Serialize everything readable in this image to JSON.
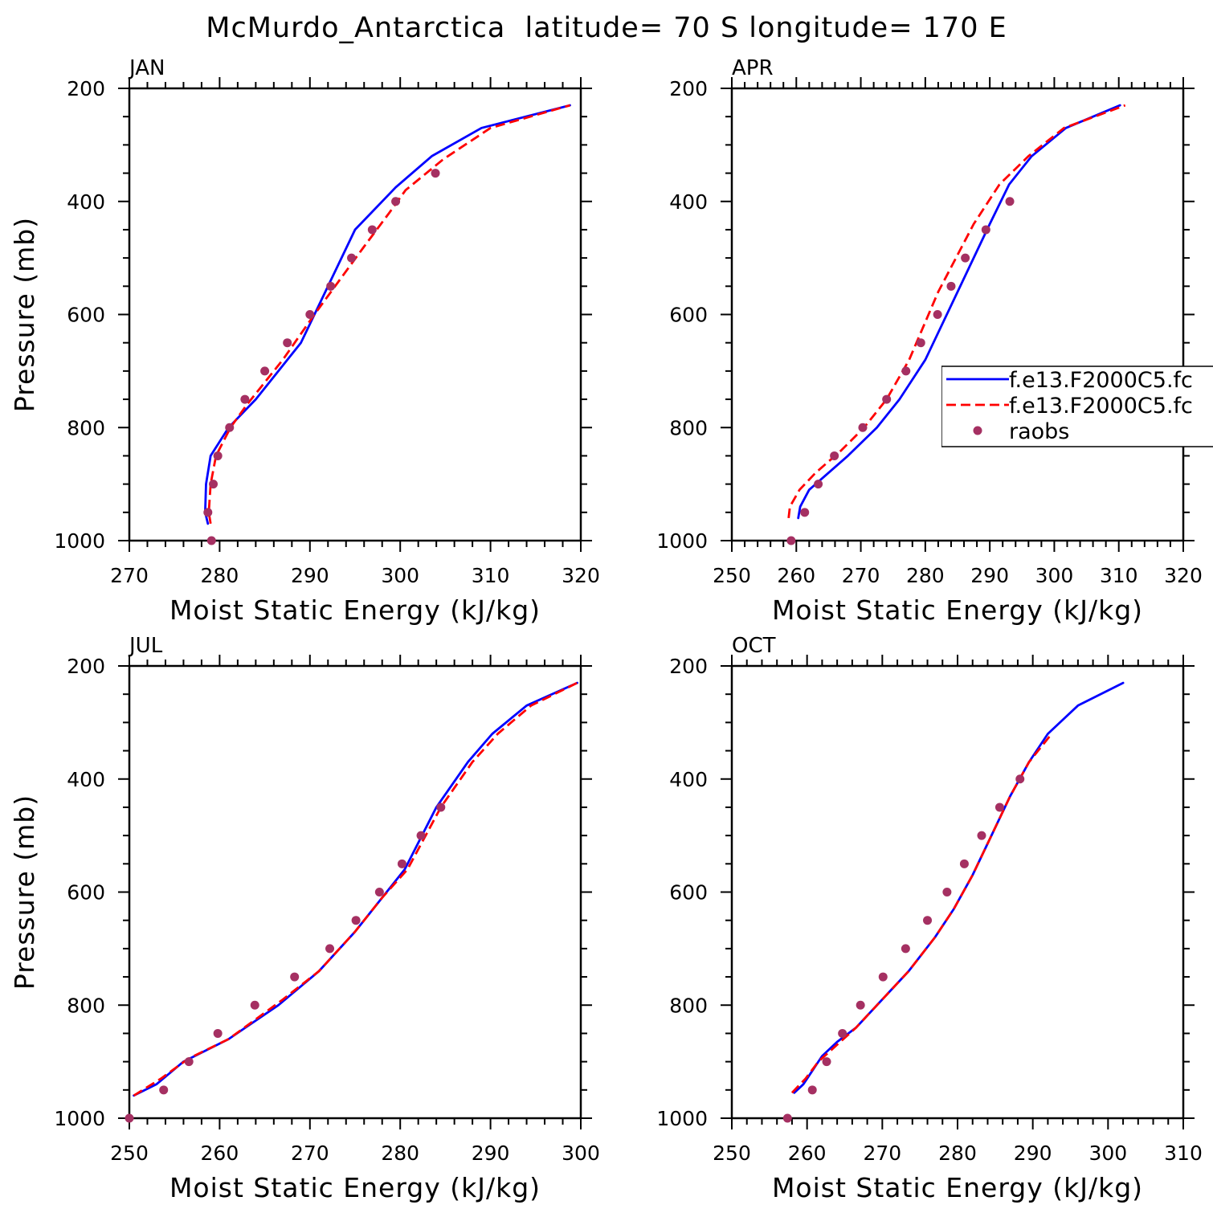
{
  "figure": {
    "title": "McMurdo_Antarctica  latitude= 70 S longitude= 170 E"
  },
  "chart_data": [
    {
      "type": "line",
      "panel": "JAN",
      "title": "JAN",
      "xlabel": "Moist Static Energy (kJ/kg)",
      "ylabel": "Pressure (mb)",
      "xlim": [
        270,
        320
      ],
      "ylim": [
        1000,
        200
      ],
      "xticks": [
        270,
        280,
        290,
        300,
        310,
        320
      ],
      "yticks": [
        200,
        400,
        600,
        800,
        1000
      ],
      "series": [
        {
          "name": "f.e13.F2000C5.fc",
          "color": "#0000ff",
          "style": "solid",
          "x": [
            278.7,
            278.4,
            278.5,
            279.0,
            281.0,
            284.0,
            289.0,
            295.0,
            299.5,
            303.5,
            309.0,
            318.8
          ],
          "y": [
            970,
            950,
            900,
            850,
            800,
            750,
            650,
            450,
            375,
            320,
            270,
            230
          ]
        },
        {
          "name": "f.e13.F2000C5.fc",
          "color": "#ff0000",
          "style": "dashed",
          "x": [
            279.0,
            278.8,
            279.0,
            279.6,
            281.2,
            283.0,
            287.0,
            290.5,
            296.0,
            298.8,
            300.6,
            304.8,
            310.0,
            318.8
          ],
          "y": [
            970,
            950,
            900,
            850,
            800,
            760,
            680,
            600,
            480,
            420,
            380,
            325,
            270,
            230
          ]
        },
        {
          "name": "raobs",
          "color": "#a53062",
          "style": "marker",
          "x": [
            279.1,
            278.7,
            279.3,
            279.8,
            281.1,
            282.8,
            285.0,
            287.5,
            290.0,
            292.3,
            294.6,
            296.9,
            299.5,
            303.9
          ],
          "y": [
            1000,
            950,
            900,
            850,
            800,
            750,
            700,
            650,
            600,
            550,
            500,
            450,
            400,
            350
          ]
        }
      ]
    },
    {
      "type": "line",
      "panel": "APR",
      "title": "APR",
      "xlabel": "Moist Static Energy (kJ/kg)",
      "ylabel": "",
      "xlim": [
        250,
        320
      ],
      "ylim": [
        1000,
        200
      ],
      "xticks": [
        250,
        260,
        270,
        280,
        290,
        300,
        310,
        320
      ],
      "yticks": [
        200,
        400,
        600,
        800,
        1000
      ],
      "series": [
        {
          "name": "f.e13.F2000C5.fc",
          "color": "#0000ff",
          "style": "solid",
          "x": [
            260.3,
            260.6,
            262.0,
            264.0,
            268.0,
            272.5,
            276.0,
            280.0,
            285.0,
            290.0,
            293.0,
            296.5,
            301.8,
            310.2
          ],
          "y": [
            960,
            940,
            910,
            890,
            850,
            800,
            750,
            680,
            560,
            440,
            370,
            320,
            270,
            230
          ]
        },
        {
          "name": "f.e13.F2000C5.fc",
          "color": "#ff0000",
          "style": "dashed",
          "x": [
            258.8,
            259.0,
            260.5,
            263.0,
            267.0,
            270.5,
            274.0,
            277.5,
            282.0,
            287.5,
            291.5,
            296.0,
            301.5,
            311.0
          ],
          "y": [
            960,
            940,
            910,
            880,
            840,
            800,
            750,
            680,
            560,
            440,
            370,
            320,
            270,
            230
          ]
        },
        {
          "name": "raobs",
          "color": "#a53062",
          "style": "marker",
          "x": [
            259.2,
            261.3,
            263.4,
            265.9,
            270.3,
            274.0,
            277.0,
            279.3,
            281.9,
            284.0,
            286.2,
            289.4,
            293.1
          ],
          "y": [
            1000,
            950,
            900,
            850,
            800,
            750,
            700,
            650,
            600,
            550,
            500,
            450,
            400
          ]
        }
      ]
    },
    {
      "type": "line",
      "panel": "JUL",
      "title": "JUL",
      "xlabel": "Moist Static Energy (kJ/kg)",
      "ylabel": "Pressure (mb)",
      "xlim": [
        250,
        300
      ],
      "ylim": [
        1000,
        200
      ],
      "xticks": [
        250,
        260,
        270,
        280,
        290,
        300
      ],
      "yticks": [
        200,
        400,
        600,
        800,
        1000
      ],
      "series": [
        {
          "name": "f.e13.F2000C5.fc",
          "color": "#0000ff",
          "style": "solid",
          "x": [
            250.5,
            253.0,
            256.0,
            261.0,
            266.5,
            271.0,
            275.0,
            278.0,
            280.5,
            284.0,
            287.5,
            290.2,
            294.0,
            299.6
          ],
          "y": [
            960,
            940,
            900,
            860,
            800,
            740,
            670,
            610,
            560,
            450,
            370,
            320,
            270,
            230
          ]
        },
        {
          "name": "f.e13.F2000C5.fc",
          "color": "#ff0000",
          "style": "dashed",
          "x": [
            250.5,
            253.5,
            256.5,
            261.0,
            267.0,
            271.0,
            275.0,
            278.0,
            280.8,
            284.5,
            288.0,
            290.8,
            294.5,
            299.6
          ],
          "y": [
            960,
            930,
            895,
            860,
            790,
            740,
            670,
            610,
            560,
            450,
            370,
            320,
            270,
            230
          ]
        },
        {
          "name": "raobs",
          "color": "#a53062",
          "style": "marker",
          "x": [
            250.0,
            253.8,
            256.6,
            259.8,
            263.9,
            268.3,
            272.2,
            275.1,
            277.7,
            280.2,
            282.3,
            284.5
          ],
          "y": [
            1000,
            950,
            900,
            850,
            800,
            750,
            700,
            650,
            600,
            550,
            500,
            450
          ]
        }
      ]
    },
    {
      "type": "line",
      "panel": "OCT",
      "title": "OCT",
      "xlabel": "Moist Static Energy (kJ/kg)",
      "ylabel": "",
      "xlim": [
        250,
        310
      ],
      "ylim": [
        1000,
        200
      ],
      "xticks": [
        250,
        260,
        270,
        280,
        290,
        300,
        310
      ],
      "yticks": [
        200,
        400,
        600,
        800,
        1000
      ],
      "series": [
        {
          "name": "f.e13.F2000C5.fc",
          "color": "#0000ff",
          "style": "solid",
          "x": [
            258.3,
            259.5,
            260.5,
            262.0,
            264.0,
            266.5,
            270.0,
            273.5,
            277.0,
            279.5,
            282.0,
            284.5,
            287.0,
            289.5,
            292.0,
            296.0,
            302.0
          ],
          "y": [
            955,
            940,
            920,
            890,
            865,
            840,
            790,
            740,
            680,
            630,
            570,
            500,
            430,
            370,
            320,
            270,
            230
          ]
        },
        {
          "name": "f.e13.F2000C5.fc",
          "color": "#ff0000",
          "style": "dashed",
          "x": [
            258.0,
            259.8,
            261.5,
            264.0,
            266.5,
            270.0,
            273.5,
            277.0,
            279.5,
            282.0,
            284.5,
            287.0,
            289.5,
            292.5
          ],
          "y": [
            955,
            930,
            900,
            870,
            840,
            790,
            740,
            680,
            630,
            570,
            500,
            430,
            370,
            320
          ]
        },
        {
          "name": "raobs",
          "color": "#a53062",
          "style": "marker",
          "x": [
            257.4,
            260.7,
            262.6,
            264.7,
            267.1,
            270.1,
            273.1,
            276.0,
            278.6,
            280.9,
            283.2,
            285.6,
            288.3
          ],
          "y": [
            1000,
            950,
            900,
            850,
            800,
            750,
            700,
            650,
            600,
            550,
            500,
            450,
            400
          ]
        }
      ]
    }
  ],
  "legend": {
    "panel": "APR",
    "placement": "right",
    "entries": [
      {
        "label": "f.e13.F2000C5.fc",
        "color": "#0000ff",
        "style": "solid"
      },
      {
        "label": "f.e13.F2000C5.fc",
        "color": "#ff0000",
        "style": "dashed"
      },
      {
        "label": "raobs",
        "color": "#a53062",
        "style": "marker"
      }
    ]
  }
}
